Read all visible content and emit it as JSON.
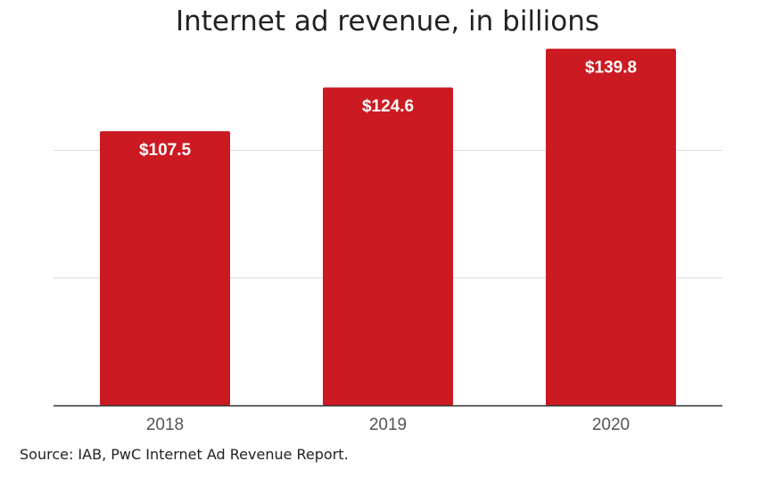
{
  "chart_data": {
    "type": "bar",
    "title": "Internet ad revenue, in billions",
    "categories": [
      "2018",
      "2019",
      "2020"
    ],
    "values": [
      107.5,
      124.6,
      139.8
    ],
    "value_labels": [
      "$107.5",
      "$124.6",
      "$139.8"
    ],
    "ylim": [
      0,
      140
    ],
    "gridlines": [
      0,
      50,
      100
    ],
    "grid": true,
    "legend": "none",
    "bar_color": "#cc1a22",
    "label_color": "#ffffff"
  },
  "source": "Source: IAB, PwC Internet Ad Revenue Report."
}
